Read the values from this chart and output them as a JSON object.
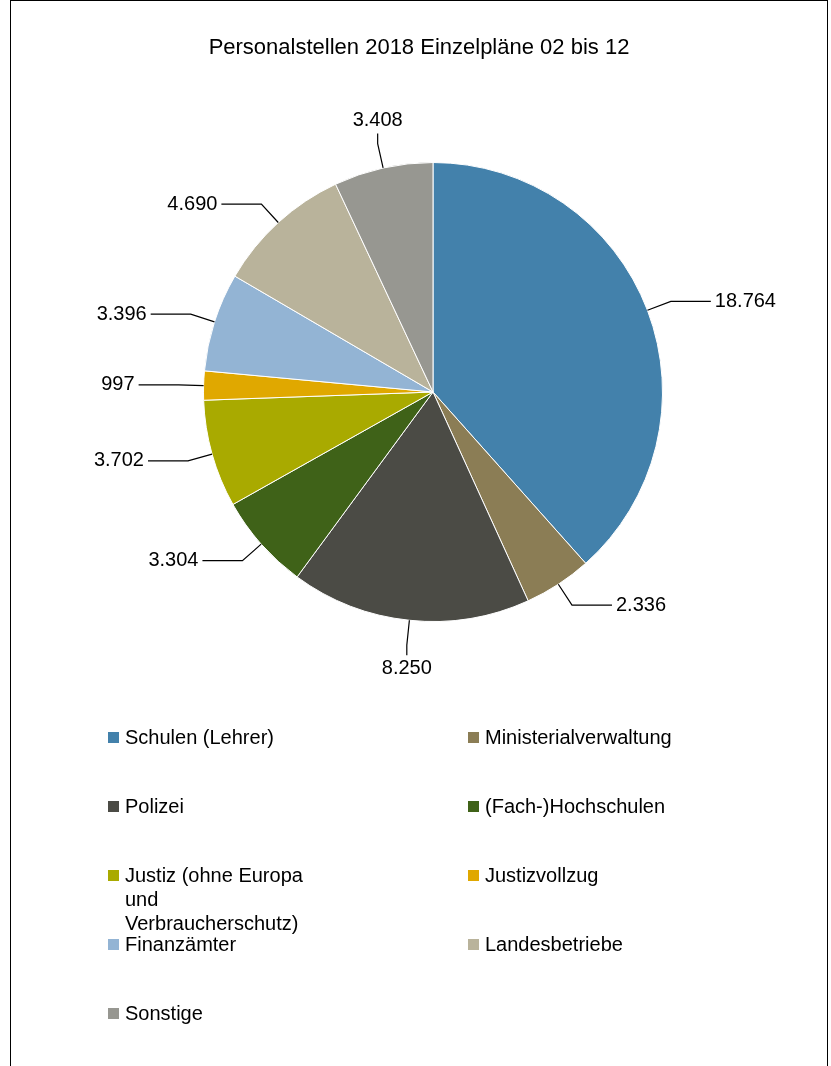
{
  "chart_data": {
    "type": "pie",
    "title": "Personalstellen 2018 Einzelpläne 02 bis 12",
    "categories": [
      "Schulen (Lehrer)",
      "Ministerialverwaltung",
      "Polizei",
      "(Fach-)Hochschulen",
      "Justiz (ohne Europa und Verbraucherschutz)",
      "Justizvollzug",
      "Finanzämter",
      "Landesbetriebe",
      "Sonstige"
    ],
    "values": [
      18764,
      2336,
      8250,
      3304,
      3702,
      997,
      3396,
      4690,
      3408
    ],
    "colors": [
      "#4381ab",
      "#8b7d55",
      "#4b4b45",
      "#3f6218",
      "#a9aa00",
      "#e0a800",
      "#93b4d4",
      "#b9b39b",
      "#979791"
    ],
    "value_labels": [
      "18.764",
      "2.336",
      "8.250",
      "3.304",
      "3.702",
      "997",
      "3.396",
      "4.690",
      "3.408"
    ],
    "legend": "bottom"
  }
}
